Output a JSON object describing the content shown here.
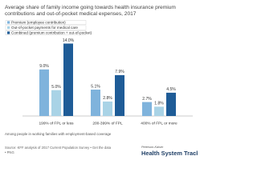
{
  "chart_data": {
    "type": "bar",
    "title": [
      "Average share of family income going towards health insurance premium",
      "contributions and out-of-pocket medical expenses, 2017"
    ],
    "categories": [
      "199% of FPL or less",
      "200-399% of FPL",
      "400% of FPL or more"
    ],
    "series": [
      {
        "name": "Premium (employee contribution)",
        "color": "#7fb3dc",
        "values": [
          9.0,
          5.1,
          2.7
        ],
        "value_labels": [
          "9.0%",
          "5.1%",
          "2.7%"
        ]
      },
      {
        "name": "Out-of-pocket payments for medical care",
        "color": "#a9d3e6",
        "values": [
          5.0,
          2.8,
          1.8
        ],
        "value_labels": [
          "5.0%",
          "2.8%",
          "1.8%"
        ]
      },
      {
        "name": "Combined (premium contribution + out-of-pocket)",
        "color": "#1f5c97",
        "values": [
          14.0,
          7.9,
          4.5
        ],
        "value_labels": [
          "14.0%",
          "7.9%",
          "4.5%"
        ]
      }
    ],
    "ylim": [
      0,
      15
    ],
    "note": "Among people in working families with employment-based coverage",
    "source": [
      "Source: KFF analysis of 2017 Current Population Survey • Get the data",
      "• PNG"
    ],
    "brand": [
      "Peterson-Kaiser",
      "Health System Tracker"
    ]
  }
}
